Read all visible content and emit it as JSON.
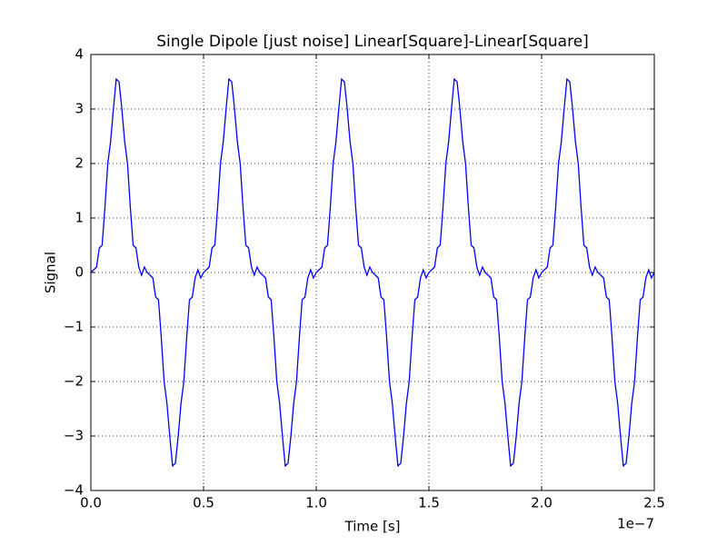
{
  "chart_data": {
    "type": "line",
    "title": "Single Dipole [just noise] Linear[Square]-Linear[Square]",
    "xlabel": "Time [s]",
    "ylabel": "Signal",
    "x_offset_text": "1e−7",
    "color": "#0000ff",
    "grid": true,
    "xlim": [
      0,
      2.5
    ],
    "ylim": [
      -4,
      4
    ],
    "xticks": [
      {
        "value": 0,
        "label": "0.0"
      },
      {
        "value": 0.5,
        "label": "0.5"
      },
      {
        "value": 1,
        "label": "1.0"
      },
      {
        "value": 1.5,
        "label": "1.5"
      },
      {
        "value": 2,
        "label": "2.0"
      },
      {
        "value": 2.5,
        "label": "2.5"
      }
    ],
    "yticks": [
      {
        "value": -4,
        "label": "−4"
      },
      {
        "value": -3,
        "label": "−3"
      },
      {
        "value": -2,
        "label": "−2"
      },
      {
        "value": -1,
        "label": "−1"
      },
      0,
      1,
      2,
      3,
      4
    ],
    "x": [
      0,
      0.0125,
      0.025,
      0.0375,
      0.05,
      0.0625,
      0.075,
      0.0875,
      0.1,
      0.1125,
      0.125,
      0.1375,
      0.15,
      0.1625,
      0.175,
      0.1875,
      0.2,
      0.2125,
      0.225,
      0.2375,
      0.25,
      0.2625,
      0.275,
      0.2875,
      0.3,
      0.3125,
      0.325,
      0.3375,
      0.35,
      0.3625,
      0.375,
      0.3875,
      0.4,
      0.4125,
      0.425,
      0.4375,
      0.45,
      0.4625,
      0.475,
      0.4875,
      0.5,
      0.5125,
      0.525,
      0.5375,
      0.55,
      0.5625,
      0.575,
      0.5875,
      0.6,
      0.6125,
      0.625,
      0.6375,
      0.65,
      0.6625,
      0.675,
      0.6875,
      0.7,
      0.7125,
      0.725,
      0.7375,
      0.75,
      0.7625,
      0.775,
      0.7875,
      0.8,
      0.8125,
      0.825,
      0.8375,
      0.85,
      0.8625,
      0.875,
      0.8875,
      0.9,
      0.9125,
      0.925,
      0.9375,
      0.95,
      0.9625,
      0.975,
      0.9875,
      1,
      1.0125,
      1.025,
      1.0375,
      1.05,
      1.0625,
      1.075,
      1.0875,
      1.1,
      1.1125,
      1.125,
      1.1375,
      1.15,
      1.1625,
      1.175,
      1.1875,
      1.2,
      1.2125,
      1.225,
      1.2375,
      1.25,
      1.2625,
      1.275,
      1.2875,
      1.3,
      1.3125,
      1.325,
      1.3375,
      1.35,
      1.3625,
      1.375,
      1.3875,
      1.4,
      1.4125,
      1.425,
      1.4375,
      1.45,
      1.4625,
      1.475,
      1.4875,
      1.5,
      1.5125,
      1.525,
      1.5375,
      1.55,
      1.5625,
      1.575,
      1.5875,
      1.6,
      1.6125,
      1.625,
      1.6375,
      1.65,
      1.6625,
      1.675,
      1.6875,
      1.7,
      1.7125,
      1.725,
      1.7375,
      1.75,
      1.7625,
      1.775,
      1.7875,
      1.8,
      1.8125,
      1.825,
      1.8375,
      1.85,
      1.8625,
      1.875,
      1.8875,
      1.9,
      1.9125,
      1.925,
      1.9375,
      1.95,
      1.9625,
      1.975,
      1.9875,
      2,
      2.0125,
      2.025,
      2.0375,
      2.05,
      2.0625,
      2.075,
      2.0875,
      2.1,
      2.1125,
      2.125,
      2.1375,
      2.15,
      2.1625,
      2.175,
      2.1875,
      2.2,
      2.2125,
      2.225,
      2.2375,
      2.25,
      2.2625,
      2.275,
      2.2875,
      2.3,
      2.3125,
      2.325,
      2.3375,
      2.35,
      2.3625,
      2.375,
      2.3875,
      2.4,
      2.4125,
      2.425,
      2.4375,
      2.45,
      2.4625,
      2.475,
      2.4875,
      2.5
    ],
    "values": [
      0,
      0.05,
      0.1,
      0.45,
      0.5,
      1.2,
      2,
      2.4,
      3,
      3.55,
      3.5,
      3,
      2.4,
      2,
      1.2,
      0.5,
      0.45,
      0.1,
      -0.05,
      0.1,
      0,
      -0.05,
      -0.1,
      -0.45,
      -0.5,
      -1.2,
      -2,
      -2.4,
      -3,
      -3.55,
      -3.5,
      -3,
      -2.4,
      -2,
      -1.2,
      -0.5,
      -0.45,
      -0.1,
      0.05,
      -0.1,
      0,
      0.05,
      0.1,
      0.45,
      0.5,
      1.2,
      2,
      2.4,
      3,
      3.55,
      3.5,
      3,
      2.4,
      2,
      1.2,
      0.5,
      0.45,
      0.1,
      -0.05,
      0.1,
      0,
      -0.05,
      -0.1,
      -0.45,
      -0.5,
      -1.2,
      -2,
      -2.4,
      -3,
      -3.55,
      -3.5,
      -3,
      -2.4,
      -2,
      -1.2,
      -0.5,
      -0.45,
      -0.1,
      0.05,
      -0.1,
      0,
      0.05,
      0.1,
      0.45,
      0.5,
      1.2,
      2,
      2.4,
      3,
      3.55,
      3.5,
      3,
      2.4,
      2,
      1.2,
      0.5,
      0.45,
      0.1,
      -0.05,
      0.1,
      0,
      -0.05,
      -0.1,
      -0.45,
      -0.5,
      -1.2,
      -2,
      -2.4,
      -3,
      -3.55,
      -3.5,
      -3,
      -2.4,
      -2,
      -1.2,
      -0.5,
      -0.45,
      -0.1,
      0.05,
      -0.1,
      0,
      0.05,
      0.1,
      0.45,
      0.5,
      1.2,
      2,
      2.4,
      3,
      3.55,
      3.5,
      3,
      2.4,
      2,
      1.2,
      0.5,
      0.45,
      0.1,
      -0.05,
      0.1,
      0,
      -0.05,
      -0.1,
      -0.45,
      -0.5,
      -1.2,
      -2,
      -2.4,
      -3,
      -3.55,
      -3.5,
      -3,
      -2.4,
      -2,
      -1.2,
      -0.5,
      -0.45,
      -0.1,
      0.05,
      -0.1,
      0,
      0.05,
      0.1,
      0.45,
      0.5,
      1.2,
      2,
      2.4,
      3,
      3.55,
      3.5,
      3,
      2.4,
      2,
      1.2,
      0.5,
      0.45,
      0.1,
      -0.05,
      0.1,
      0,
      -0.05,
      -0.1,
      -0.45,
      -0.5,
      -1.2,
      -2,
      -2.4,
      -3,
      -3.55,
      -3.5,
      -3,
      -2.4,
      -2,
      -1.2,
      -0.5,
      -0.45,
      -0.1,
      0.05,
      -0.1,
      0
    ]
  }
}
